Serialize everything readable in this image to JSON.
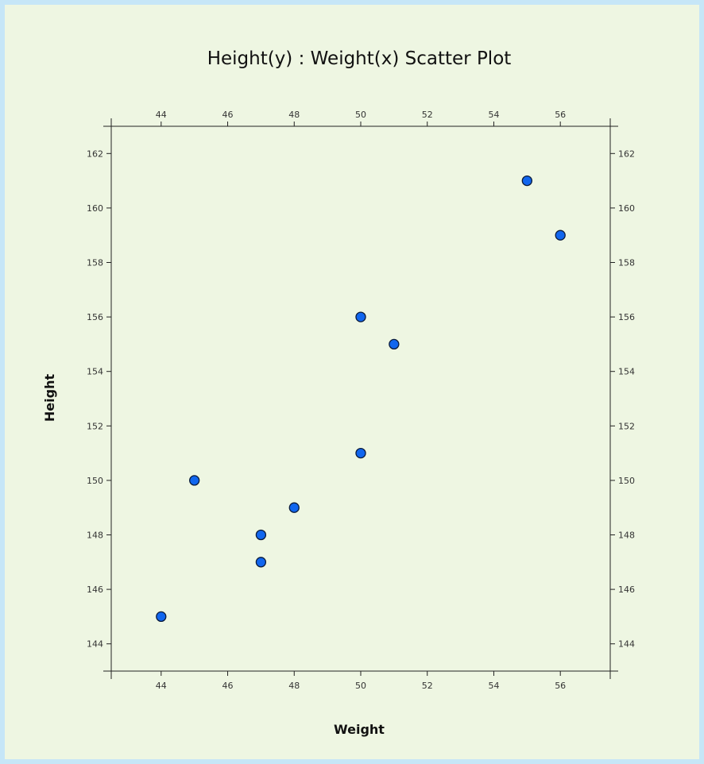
{
  "chart_data": {
    "type": "scatter",
    "title": "Height(y) : Weight(x) Scatter Plot",
    "xlabel": "Weight",
    "ylabel": "Height",
    "xlim": [
      42.5,
      57.5
    ],
    "ylim": [
      143,
      163
    ],
    "x_ticks": [
      44,
      46,
      48,
      50,
      52,
      54,
      56
    ],
    "y_ticks": [
      144,
      146,
      148,
      150,
      152,
      154,
      156,
      158,
      160,
      162
    ],
    "grid": false,
    "mirrored_axes": true,
    "points": [
      {
        "x": 44,
        "y": 145
      },
      {
        "x": 45,
        "y": 150
      },
      {
        "x": 47,
        "y": 148
      },
      {
        "x": 47,
        "y": 147
      },
      {
        "x": 48,
        "y": 149
      },
      {
        "x": 50,
        "y": 156
      },
      {
        "x": 50,
        "y": 151
      },
      {
        "x": 51,
        "y": 155
      },
      {
        "x": 55,
        "y": 161
      },
      {
        "x": 56,
        "y": 159
      }
    ],
    "colors": {
      "marker_fill": "#1166ee",
      "marker_stroke": "#0a1a3a",
      "background": "#eef6e2",
      "border": "#c6e6f7"
    }
  }
}
